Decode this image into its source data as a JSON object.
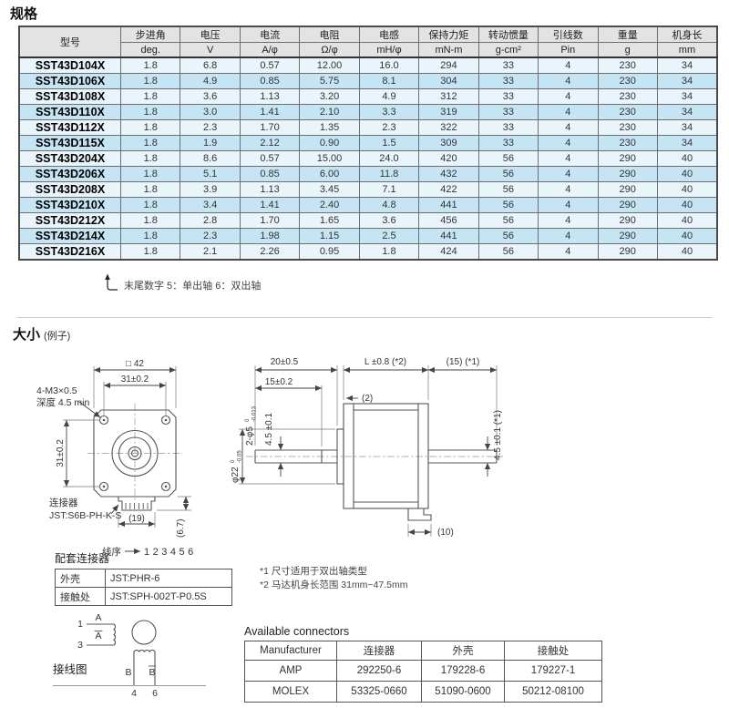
{
  "page": {
    "spec_title": "规格",
    "size_title": "大小",
    "size_subtitle": "(例子)"
  },
  "spec_table": {
    "columns": [
      {
        "label": "型号",
        "unit": ""
      },
      {
        "label": "步进角",
        "unit": "deg."
      },
      {
        "label": "电压",
        "unit": "V"
      },
      {
        "label": "电流",
        "unit": "A/φ"
      },
      {
        "label": "电阻",
        "unit": "Ω/φ"
      },
      {
        "label": "电感",
        "unit": "mH/φ"
      },
      {
        "label": "保持力矩",
        "unit": "mN-m"
      },
      {
        "label": "转动惯量",
        "unit": "g-cm²"
      },
      {
        "label": "引线数",
        "unit": "Pin"
      },
      {
        "label": "重量",
        "unit": "g"
      },
      {
        "label": "机身长",
        "unit": "mm"
      }
    ],
    "rows": [
      [
        "SST43D104X",
        "1.8",
        "6.8",
        "0.57",
        "12.00",
        "16.0",
        "294",
        "33",
        "4",
        "230",
        "34"
      ],
      [
        "SST43D106X",
        "1.8",
        "4.9",
        "0.85",
        "5.75",
        "8.1",
        "304",
        "33",
        "4",
        "230",
        "34"
      ],
      [
        "SST43D108X",
        "1.8",
        "3.6",
        "1.13",
        "3.20",
        "4.9",
        "312",
        "33",
        "4",
        "230",
        "34"
      ],
      [
        "SST43D110X",
        "1.8",
        "3.0",
        "1.41",
        "2.10",
        "3.3",
        "319",
        "33",
        "4",
        "230",
        "34"
      ],
      [
        "SST43D112X",
        "1.8",
        "2.3",
        "1.70",
        "1.35",
        "2.3",
        "322",
        "33",
        "4",
        "230",
        "34"
      ],
      [
        "SST43D115X",
        "1.8",
        "1.9",
        "2.12",
        "0.90",
        "1.5",
        "309",
        "33",
        "4",
        "230",
        "34"
      ],
      [
        "SST43D204X",
        "1.8",
        "8.6",
        "0.57",
        "15.00",
        "24.0",
        "420",
        "56",
        "4",
        "290",
        "40"
      ],
      [
        "SST43D206X",
        "1.8",
        "5.1",
        "0.85",
        "6.00",
        "11.8",
        "432",
        "56",
        "4",
        "290",
        "40"
      ],
      [
        "SST43D208X",
        "1.8",
        "3.9",
        "1.13",
        "3.45",
        "7.1",
        "422",
        "56",
        "4",
        "290",
        "40"
      ],
      [
        "SST43D210X",
        "1.8",
        "3.4",
        "1.41",
        "2.40",
        "4.8",
        "441",
        "56",
        "4",
        "290",
        "40"
      ],
      [
        "SST43D212X",
        "1.8",
        "2.8",
        "1.70",
        "1.65",
        "3.6",
        "456",
        "56",
        "4",
        "290",
        "40"
      ],
      [
        "SST43D214X",
        "1.8",
        "2.3",
        "1.98",
        "1.15",
        "2.5",
        "441",
        "56",
        "4",
        "290",
        "40"
      ],
      [
        "SST43D216X",
        "1.8",
        "2.1",
        "2.26",
        "0.95",
        "1.8",
        "424",
        "56",
        "4",
        "290",
        "40"
      ]
    ],
    "footnote": "末尾数字 5：单出轴 6：双出轴"
  },
  "drawing": {
    "front": {
      "dim_square": "□ 42",
      "dim_hole_h": "31±0.2",
      "dim_hole_v": "31±0.2",
      "screw_label_1": "4-M3×0.5",
      "screw_label_2": "深度 4.5 min",
      "connector_label_1": "连接器",
      "connector_label_2": "JST:S6B-PH-K-S",
      "dim_connector_w": "(19)",
      "dim_connector_h": "(6.7)",
      "wire_order_label": "线序",
      "wire_order_value": "123456"
    },
    "side": {
      "dim_20": "20±0.5",
      "dim_15": "15±0.2",
      "dim_L": "L ±0.8 (*2)",
      "dim_15r": "(15) (*1)",
      "dim_2": "(2)",
      "dim_shaft": "2-φ5",
      "shaft_tol_top": "0",
      "shaft_tol_bottom": "-0.013",
      "dim_45_left": "4.5 ±0.1",
      "dim_boss": "φ22",
      "boss_tol_top": "0",
      "boss_tol_bottom": "-0.05",
      "dim_45_right": "4.5 ±0.1 (*1)",
      "dim_10": "(10)"
    },
    "notes": [
      "*1 尺寸适用于双出轴类型",
      "*2 马达机身长范围 31mm~47.5mm"
    ]
  },
  "mating_connectors": {
    "title": "配套连接器",
    "rows": [
      [
        "外壳",
        "JST:PHR-6"
      ],
      [
        "接触处",
        "JST:SPH-002T-P0.5S"
      ]
    ]
  },
  "wiring": {
    "title": "接线图",
    "pin1": "1",
    "pin3": "3",
    "pin4": "4",
    "pin6": "6",
    "phase_a": "A",
    "phase_a_bar": "A",
    "phase_b": "B",
    "phase_b_bar": "B"
  },
  "available_connectors": {
    "title": "Available connectors",
    "headers": [
      "Manufacturer",
      "连接器",
      "外壳",
      "接触处"
    ],
    "rows": [
      [
        "AMP",
        "292250-6",
        "179228-6",
        "179227-1"
      ],
      [
        "MOLEX",
        "53325-0660",
        "51090-0600",
        "50212-08100"
      ]
    ]
  }
}
